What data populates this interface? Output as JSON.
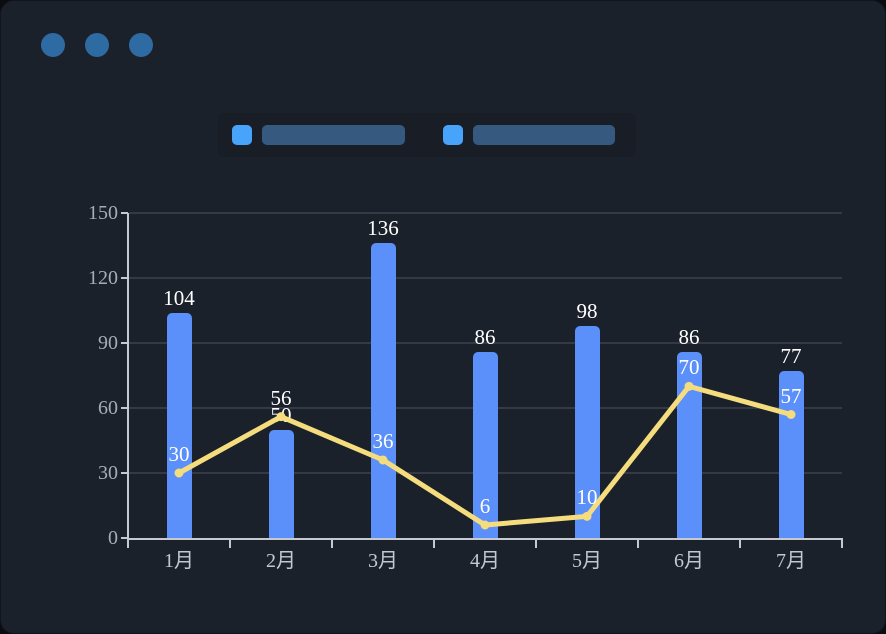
{
  "window": {
    "controls": [
      {
        "name": "window-dot-1"
      },
      {
        "name": "window-dot-2"
      },
      {
        "name": "window-dot-3"
      }
    ],
    "dot_color": "#2f6ba3"
  },
  "legend": {
    "items": [
      {
        "name": "bar-series-legend",
        "swatch_color": "#47a4fa",
        "placeholder_color": "#35597f"
      },
      {
        "name": "line-series-legend",
        "swatch_color": "#47a4fa",
        "placeholder_color": "#35597f"
      }
    ]
  },
  "chart_data": {
    "type": "bar",
    "subtype": "bar-with-line-overlay",
    "categories": [
      "1月",
      "2月",
      "3月",
      "4月",
      "5月",
      "6月",
      "7月"
    ],
    "series": [
      {
        "name": "bar-series",
        "type": "bar",
        "values": [
          104,
          50,
          136,
          86,
          98,
          86,
          77
        ],
        "color": "#5b8ff9",
        "label_color": "#ffffff"
      },
      {
        "name": "line-series",
        "type": "line",
        "values": [
          30,
          56,
          36,
          6,
          10,
          70,
          57
        ],
        "color": "#f5dd7e",
        "label_color": "#ffffff"
      }
    ],
    "title": "",
    "xlabel": "",
    "ylabel": "",
    "ylim": [
      0,
      150
    ],
    "yticks": [
      0,
      30,
      60,
      90,
      120,
      150
    ],
    "grid": true,
    "legend_position": "top"
  },
  "colors": {
    "page_background": "#0a0c10",
    "card_background": "#1b212b",
    "legend_panel_background": "#181d26",
    "axis_line": "#c6c9d0",
    "gridline": "#343945",
    "y_tick_label": "#a7acb7",
    "x_tick_label": "#c3c8d1",
    "value_label": "#ffffff"
  }
}
